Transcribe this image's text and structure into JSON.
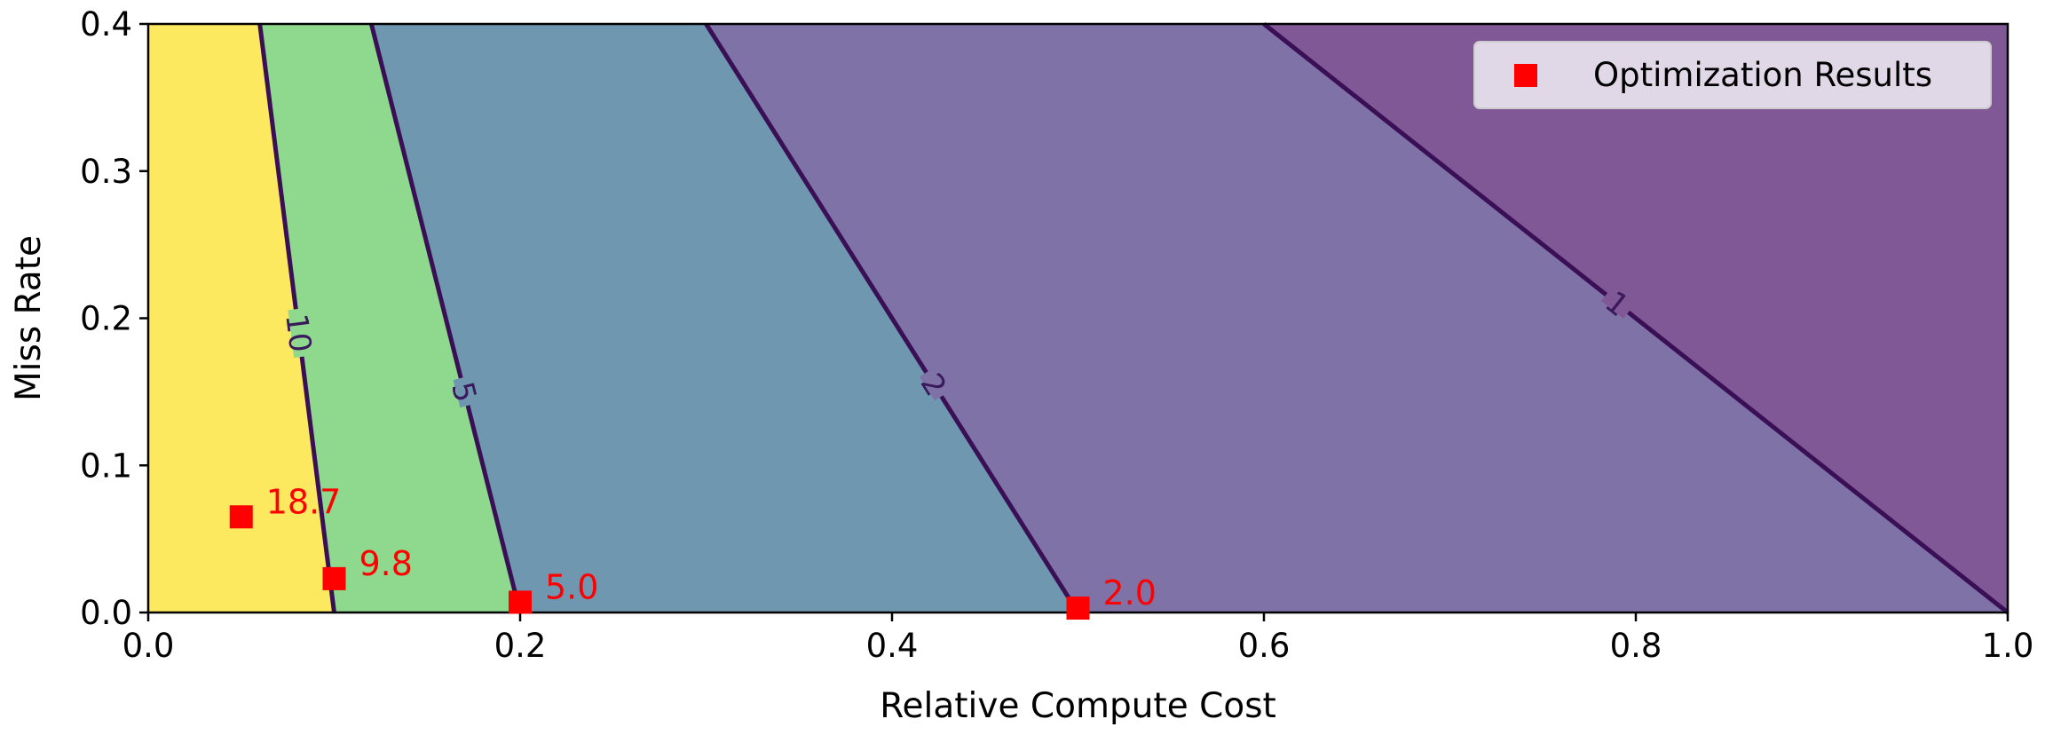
{
  "chart_data": {
    "type": "scatter",
    "title": "",
    "xlabel": "Relative Compute Cost",
    "ylabel": "Miss Rate",
    "xlim": [
      0.0,
      1.0
    ],
    "ylim": [
      0.0,
      0.4
    ],
    "xticks": [
      "0.0",
      "0.2",
      "0.4",
      "0.6",
      "0.8",
      "1.0"
    ],
    "yticks": [
      "0.0",
      "0.1",
      "0.2",
      "0.3",
      "0.4"
    ],
    "grid": false,
    "legend": {
      "position": "top-right",
      "entries": [
        "Optimization Results"
      ]
    },
    "contours": [
      {
        "label": "10",
        "x_at_bottom": 0.1,
        "x_at_top": 0.06
      },
      {
        "label": "5",
        "x_at_bottom": 0.2,
        "x_at_top": 0.12
      },
      {
        "label": "2",
        "x_at_bottom": 0.5,
        "x_at_top": 0.3
      },
      {
        "label": "1",
        "x_at_bottom": 1.0,
        "x_at_top": 0.6
      }
    ],
    "region_colors": [
      "#fde95f",
      "#8ed98e",
      "#6f98b0",
      "#7f72a7",
      "#7f5895"
    ],
    "contour_line_color": "#3b0f56",
    "series": [
      {
        "name": "Optimization Results",
        "marker": "square",
        "color": "#ff0000",
        "points": [
          {
            "x": 0.05,
            "y": 0.065,
            "label": "18.7"
          },
          {
            "x": 0.1,
            "y": 0.023,
            "label": "9.8"
          },
          {
            "x": 0.2,
            "y": 0.007,
            "label": "5.0"
          },
          {
            "x": 0.5,
            "y": 0.003,
            "label": "2.0"
          }
        ]
      }
    ]
  }
}
